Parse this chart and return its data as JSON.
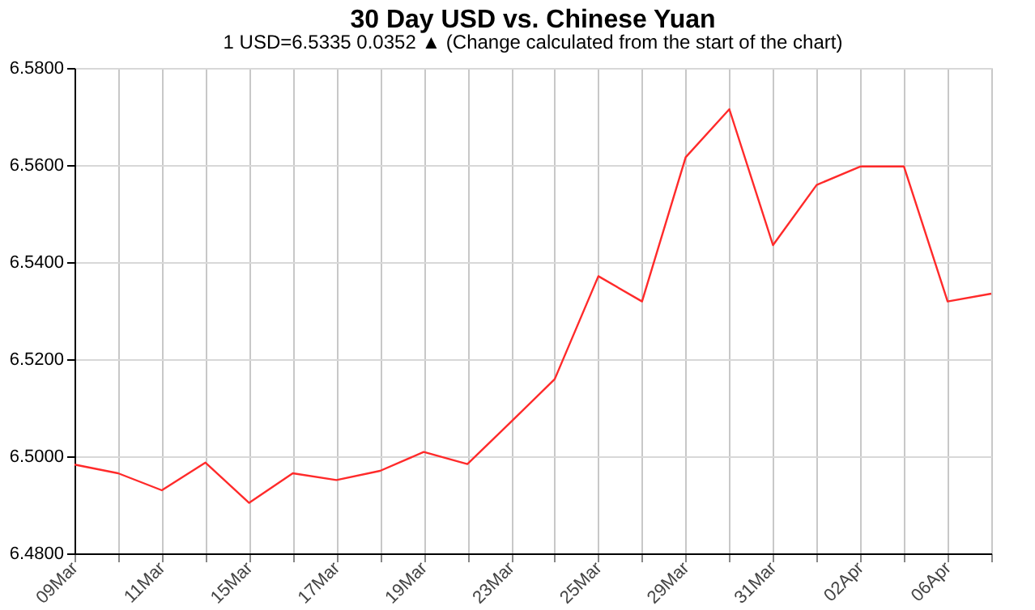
{
  "chart_data": {
    "type": "line",
    "title": "30 Day USD vs. Chinese Yuan",
    "subtitle": "1 USD=6.5335  0.0352 ▲  (Change calculated from the start of the chart)",
    "categories": [
      "09Mar",
      null,
      "11Mar",
      null,
      "15Mar",
      null,
      "17Mar",
      null,
      "19Mar",
      null,
      "23Mar",
      null,
      "25Mar",
      null,
      "29Mar",
      null,
      "31Mar",
      null,
      "02Apr",
      null,
      "06Apr",
      null
    ],
    "series": [
      {
        "color": "#ff2a2a",
        "values": [
          6.4983,
          6.4965,
          6.493,
          6.4987,
          6.4904,
          6.4965,
          6.4951,
          6.497,
          6.5009,
          6.4984,
          6.5071,
          6.5159,
          6.5371,
          6.5319,
          6.5616,
          6.5715,
          6.5435,
          6.5559,
          6.5597,
          6.5597,
          6.5319,
          6.5335
        ]
      }
    ],
    "ylim": [
      6.48,
      6.58
    ],
    "yticks": [
      {
        "value": 6.48,
        "label": "6.4800"
      },
      {
        "value": 6.5,
        "label": "6.5000"
      },
      {
        "value": 6.52,
        "label": "6.5200"
      },
      {
        "value": 6.54,
        "label": "6.5400"
      },
      {
        "value": 6.56,
        "label": "6.5600"
      },
      {
        "value": 6.58,
        "label": "6.5800"
      }
    ],
    "grid": true,
    "marker": "none",
    "line_style": "solid"
  }
}
